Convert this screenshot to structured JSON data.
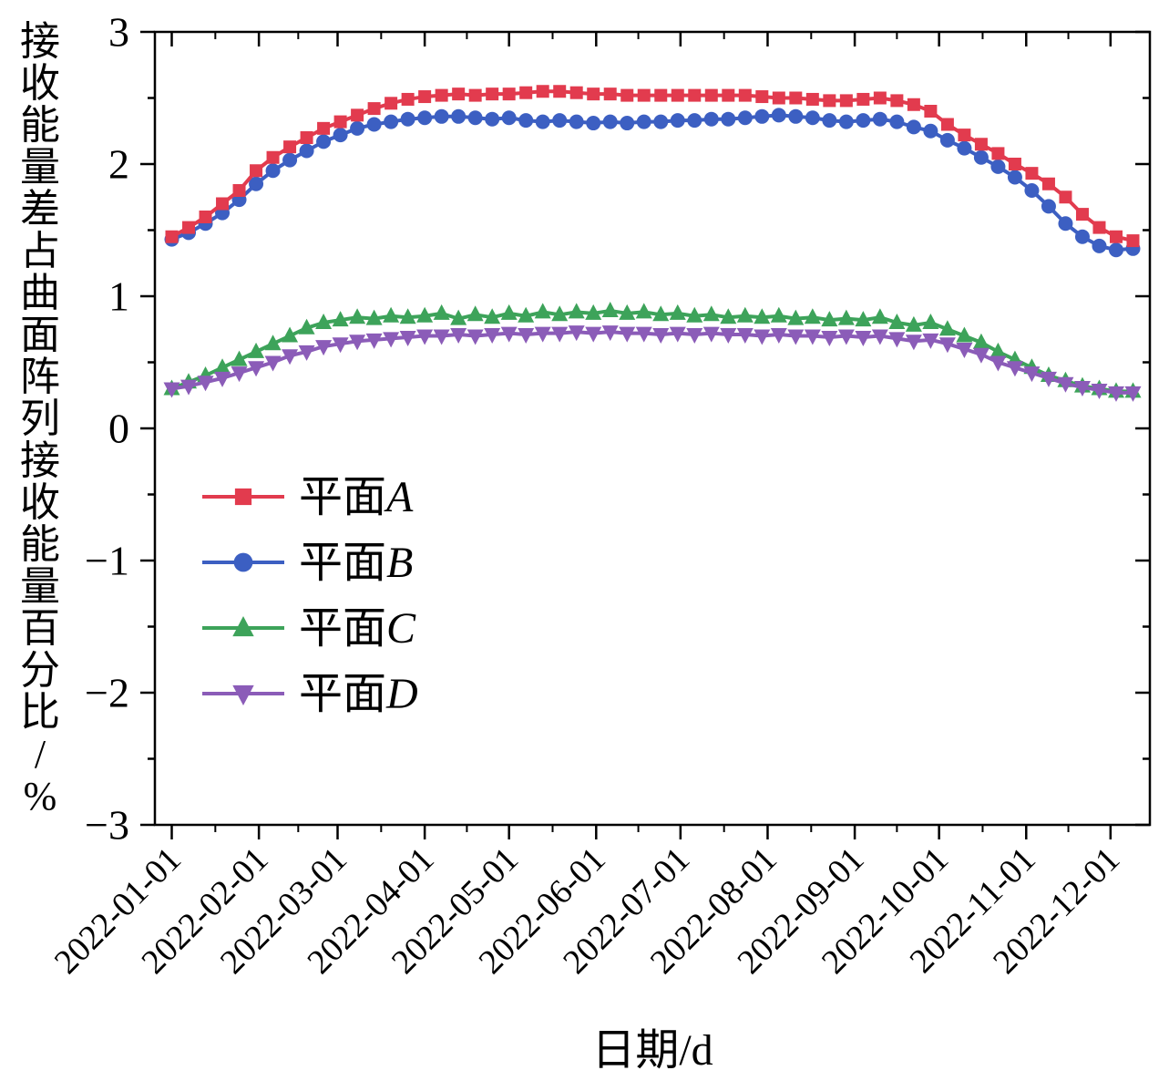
{
  "chart_data": {
    "type": "line",
    "title": "",
    "xlabel": "日期/d",
    "ylabel": "接收能量差占曲面阵列接收能量百分比/%",
    "ylim": [
      -3,
      3
    ],
    "xlim": [
      -6,
      348
    ],
    "y_minor_step": 0.5,
    "grid": false,
    "legend_position": "inside-center-left",
    "y_ticks": [
      {
        "label": "−3",
        "value": -3
      },
      {
        "label": "−2",
        "value": -2
      },
      {
        "label": "−1",
        "value": -1
      },
      {
        "label": "0",
        "value": 0
      },
      {
        "label": "1",
        "value": 1
      },
      {
        "label": "2",
        "value": 2
      },
      {
        "label": "3",
        "value": 3
      }
    ],
    "x_ticks": [
      {
        "label": "2022-01-01",
        "day": 0
      },
      {
        "label": "2022-02-01",
        "day": 31
      },
      {
        "label": "2022-03-01",
        "day": 59
      },
      {
        "label": "2022-04-01",
        "day": 90
      },
      {
        "label": "2022-05-01",
        "day": 120
      },
      {
        "label": "2022-06-01",
        "day": 151
      },
      {
        "label": "2022-07-01",
        "day": 181
      },
      {
        "label": "2022-08-01",
        "day": 212
      },
      {
        "label": "2022-09-01",
        "day": 243
      },
      {
        "label": "2022-10-01",
        "day": 273
      },
      {
        "label": "2022-11-01",
        "day": 304
      },
      {
        "label": "2022-12-01",
        "day": 334
      }
    ],
    "x_days": [
      0,
      6,
      12,
      18,
      24,
      30,
      36,
      42,
      48,
      54,
      60,
      66,
      72,
      78,
      84,
      90,
      96,
      102,
      108,
      114,
      120,
      126,
      132,
      138,
      144,
      150,
      156,
      162,
      168,
      174,
      180,
      186,
      192,
      198,
      204,
      210,
      216,
      222,
      228,
      234,
      240,
      246,
      252,
      258,
      264,
      270,
      276,
      282,
      288,
      294,
      300,
      306,
      312,
      318,
      324,
      330,
      336,
      342
    ],
    "series": [
      {
        "id": "a",
        "label": "平面A",
        "label_prefix": "平面",
        "label_letter": "A",
        "marker": "square",
        "color": "#e23b4e",
        "values": [
          1.45,
          1.52,
          1.6,
          1.7,
          1.8,
          1.95,
          2.05,
          2.13,
          2.2,
          2.27,
          2.32,
          2.37,
          2.42,
          2.46,
          2.49,
          2.51,
          2.52,
          2.53,
          2.52,
          2.53,
          2.53,
          2.54,
          2.55,
          2.55,
          2.54,
          2.53,
          2.53,
          2.52,
          2.52,
          2.52,
          2.52,
          2.52,
          2.52,
          2.52,
          2.52,
          2.51,
          2.5,
          2.5,
          2.49,
          2.48,
          2.48,
          2.49,
          2.5,
          2.48,
          2.45,
          2.4,
          2.3,
          2.22,
          2.15,
          2.08,
          2.0,
          1.93,
          1.85,
          1.75,
          1.62,
          1.52,
          1.45,
          1.42
        ]
      },
      {
        "id": "b",
        "label": "平面B",
        "label_prefix": "平面",
        "label_letter": "B",
        "marker": "circle",
        "color": "#3c5fc2",
        "values": [
          1.43,
          1.48,
          1.55,
          1.63,
          1.73,
          1.85,
          1.95,
          2.03,
          2.1,
          2.17,
          2.22,
          2.27,
          2.3,
          2.32,
          2.34,
          2.35,
          2.36,
          2.36,
          2.35,
          2.34,
          2.35,
          2.33,
          2.32,
          2.33,
          2.32,
          2.31,
          2.32,
          2.31,
          2.32,
          2.32,
          2.33,
          2.33,
          2.34,
          2.34,
          2.35,
          2.36,
          2.37,
          2.36,
          2.35,
          2.33,
          2.32,
          2.33,
          2.34,
          2.32,
          2.28,
          2.25,
          2.18,
          2.12,
          2.05,
          1.98,
          1.9,
          1.8,
          1.68,
          1.55,
          1.45,
          1.38,
          1.35,
          1.36
        ]
      },
      {
        "id": "c",
        "label": "平面C",
        "label_prefix": "平面",
        "label_letter": "C",
        "marker": "triangle-up",
        "color": "#3da35a",
        "values": [
          0.3,
          0.35,
          0.4,
          0.46,
          0.52,
          0.58,
          0.64,
          0.7,
          0.76,
          0.8,
          0.82,
          0.84,
          0.83,
          0.85,
          0.84,
          0.85,
          0.87,
          0.83,
          0.86,
          0.84,
          0.87,
          0.85,
          0.88,
          0.86,
          0.88,
          0.87,
          0.89,
          0.87,
          0.88,
          0.86,
          0.87,
          0.85,
          0.86,
          0.84,
          0.85,
          0.84,
          0.85,
          0.83,
          0.84,
          0.82,
          0.83,
          0.82,
          0.84,
          0.8,
          0.78,
          0.8,
          0.75,
          0.7,
          0.65,
          0.58,
          0.52,
          0.46,
          0.4,
          0.36,
          0.32,
          0.3,
          0.28,
          0.28
        ]
      },
      {
        "id": "d",
        "label": "平面D",
        "label_prefix": "平面",
        "label_letter": "D",
        "marker": "triangle-down",
        "color": "#8b5cb8",
        "values": [
          0.3,
          0.32,
          0.35,
          0.38,
          0.42,
          0.46,
          0.5,
          0.55,
          0.58,
          0.62,
          0.64,
          0.66,
          0.67,
          0.68,
          0.69,
          0.7,
          0.7,
          0.71,
          0.7,
          0.71,
          0.72,
          0.71,
          0.72,
          0.72,
          0.73,
          0.72,
          0.73,
          0.72,
          0.72,
          0.71,
          0.72,
          0.71,
          0.72,
          0.71,
          0.71,
          0.7,
          0.71,
          0.7,
          0.7,
          0.69,
          0.7,
          0.69,
          0.7,
          0.68,
          0.66,
          0.67,
          0.64,
          0.6,
          0.56,
          0.5,
          0.46,
          0.42,
          0.38,
          0.34,
          0.31,
          0.29,
          0.27,
          0.27
        ]
      }
    ]
  }
}
